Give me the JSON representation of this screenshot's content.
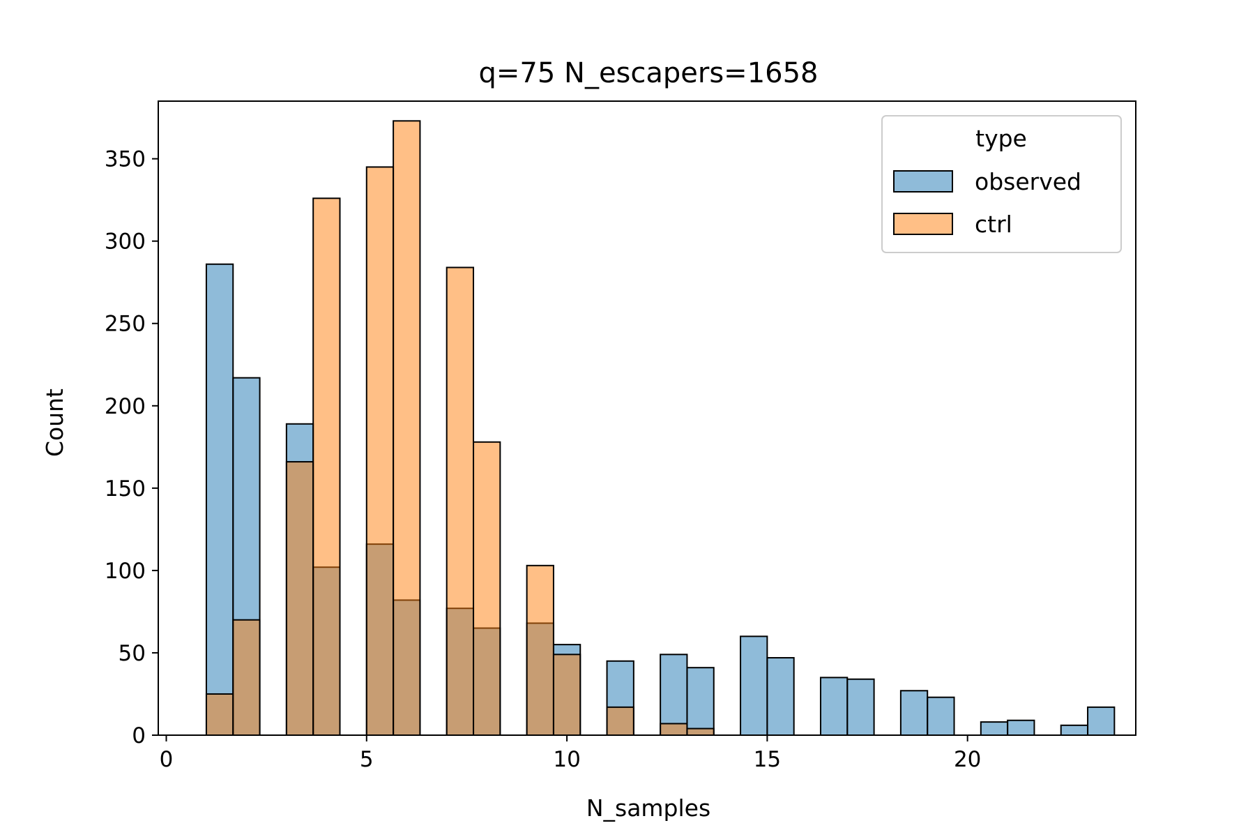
{
  "chart_data": {
    "type": "bar",
    "title": "q=75 N_escapers=1658",
    "xlabel": "N_samples",
    "ylabel": "Count",
    "xlim": [
      -0.2,
      24.2
    ],
    "ylim": [
      0,
      385
    ],
    "xticks": [
      0,
      5,
      10,
      15,
      20
    ],
    "yticks": [
      0,
      50,
      100,
      150,
      200,
      250,
      300,
      350
    ],
    "bin_width": 0.6667,
    "grid": false,
    "legend": {
      "title": "type",
      "placement": "top-right"
    },
    "series": [
      {
        "name": "observed",
        "color": "#1f77b4",
        "bins": [
          [
            1.0,
            286
          ],
          [
            1.667,
            217
          ],
          [
            3.0,
            189
          ],
          [
            3.667,
            102
          ],
          [
            5.0,
            116
          ],
          [
            5.667,
            82
          ],
          [
            7.0,
            77
          ],
          [
            7.667,
            65
          ],
          [
            9.0,
            68
          ],
          [
            9.667,
            55
          ],
          [
            11.0,
            45
          ],
          [
            12.333,
            49
          ],
          [
            13.0,
            41
          ],
          [
            14.333,
            60
          ],
          [
            15.0,
            47
          ],
          [
            16.333,
            35
          ],
          [
            17.0,
            34
          ],
          [
            18.333,
            27
          ],
          [
            19.0,
            23
          ],
          [
            20.333,
            8
          ],
          [
            21.0,
            9
          ],
          [
            22.333,
            6
          ],
          [
            23.0,
            17
          ]
        ]
      },
      {
        "name": "ctrl",
        "color": "#ff7f0e",
        "bins": [
          [
            1.0,
            25
          ],
          [
            1.667,
            70
          ],
          [
            3.0,
            166
          ],
          [
            3.667,
            326
          ],
          [
            5.0,
            345
          ],
          [
            5.667,
            373
          ],
          [
            7.0,
            284
          ],
          [
            7.667,
            178
          ],
          [
            9.0,
            103
          ],
          [
            9.667,
            49
          ],
          [
            11.0,
            17
          ],
          [
            12.333,
            7
          ],
          [
            13.0,
            4
          ]
        ]
      }
    ]
  }
}
